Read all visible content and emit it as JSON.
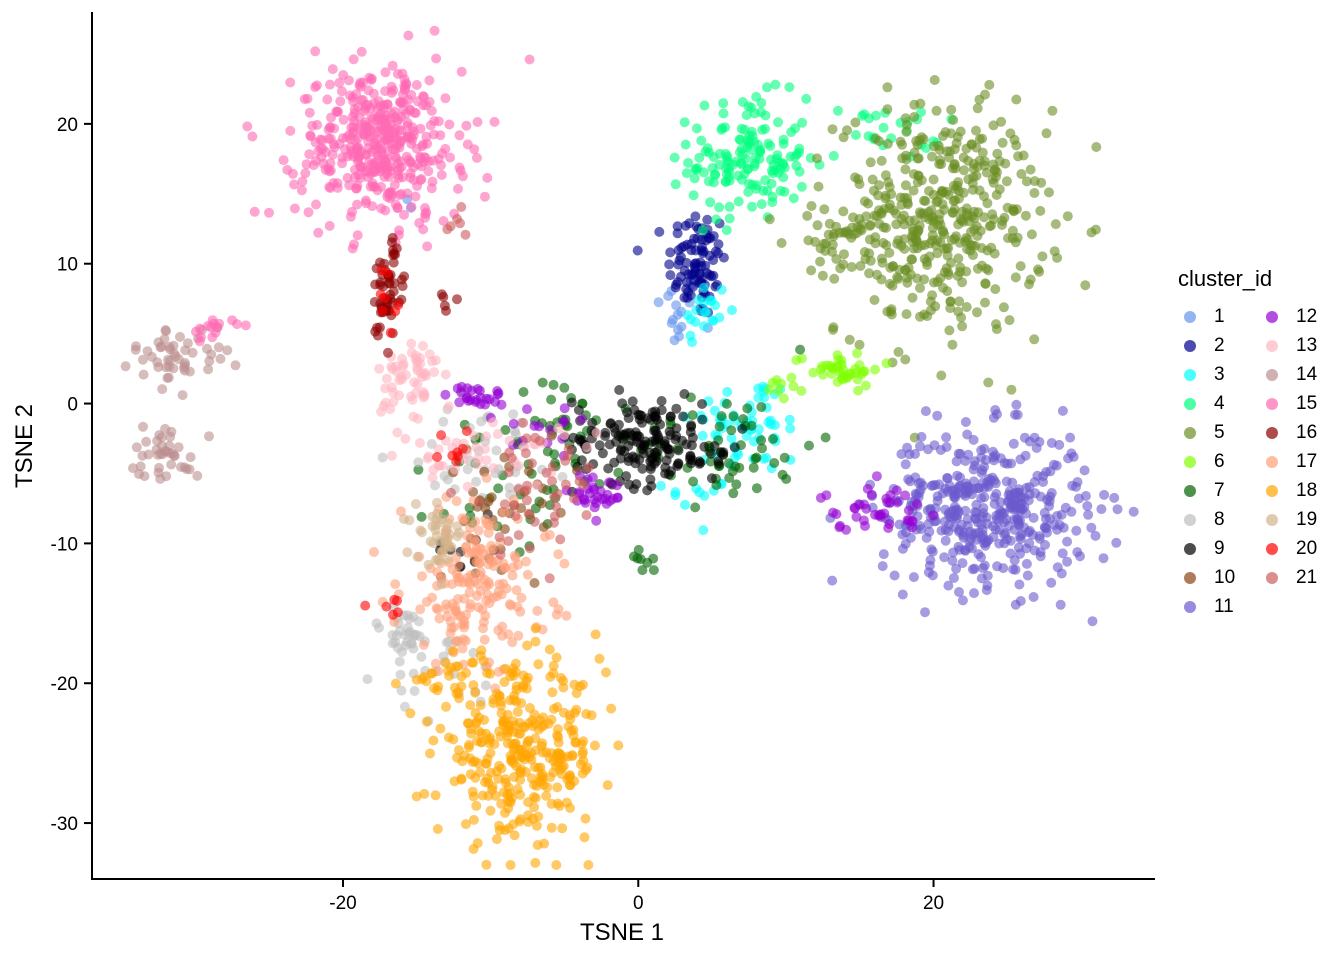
{
  "chart_data": {
    "type": "scatter",
    "xlabel": "TSNE 1",
    "ylabel": "TSNE 2",
    "xlim": [
      -37,
      35
    ],
    "ylim": [
      -34,
      28
    ],
    "xticks": [
      -20,
      0,
      20
    ],
    "yticks": [
      -30,
      -20,
      -10,
      0,
      10,
      20
    ],
    "grid": false,
    "point_opacity": 0.6,
    "legend": {
      "title": "cluster_id",
      "placement": "right",
      "columns": 2
    },
    "series": [
      {
        "name": "1",
        "color": "#6495ED",
        "clusters": [
          {
            "cx": 2.5,
            "cy": 6.5,
            "sx": 0.8,
            "sy": 1.5,
            "n": 16
          },
          {
            "cx": -15.5,
            "cy": 14.5,
            "sx": 0.3,
            "sy": 0.3,
            "n": 2
          }
        ]
      },
      {
        "name": "2",
        "color": "#00008B",
        "clusters": [
          {
            "cx": 4.0,
            "cy": 10.0,
            "sx": 1.0,
            "sy": 2.0,
            "n": 90
          }
        ]
      },
      {
        "name": "3",
        "color": "#00FFFF",
        "clusters": [
          {
            "cx": 4.5,
            "cy": 6.5,
            "sx": 0.8,
            "sy": 1.2,
            "n": 20
          },
          {
            "cx": 7.5,
            "cy": -1.5,
            "sx": 2.0,
            "sy": 1.8,
            "n": 60
          },
          {
            "cx": 4.0,
            "cy": -6.5,
            "sx": 1.0,
            "sy": 0.6,
            "n": 10
          }
        ]
      },
      {
        "name": "4",
        "color": "#00FF7F",
        "clusters": [
          {
            "cx": 7.5,
            "cy": 17.5,
            "sx": 2.0,
            "sy": 2.2,
            "n": 150
          },
          {
            "cx": 16.5,
            "cy": 19.5,
            "sx": 2.0,
            "sy": 1.0,
            "n": 25
          }
        ]
      },
      {
        "name": "5",
        "color": "#6B8E23",
        "clusters": [
          {
            "cx": 20.5,
            "cy": 13.0,
            "sx": 3.5,
            "sy": 4.0,
            "n": 430
          },
          {
            "cx": 14.0,
            "cy": 12.0,
            "sx": 2.0,
            "sy": 1.2,
            "n": 35
          }
        ]
      },
      {
        "name": "6",
        "color": "#7FFF00",
        "clusters": [
          {
            "cx": 13.5,
            "cy": 2.5,
            "sx": 1.5,
            "sy": 0.6,
            "n": 40
          },
          {
            "cx": 10.0,
            "cy": 1.0,
            "sx": 0.6,
            "sy": 0.6,
            "n": 8
          }
        ]
      },
      {
        "name": "7",
        "color": "#006400",
        "clusters": [
          {
            "cx": 6.0,
            "cy": -3.0,
            "sx": 3.0,
            "sy": 2.0,
            "n": 60
          },
          {
            "cx": -5.5,
            "cy": -2.0,
            "sx": 2.0,
            "sy": 2.0,
            "n": 40
          },
          {
            "cx": -9.0,
            "cy": -7.0,
            "sx": 2.5,
            "sy": 2.0,
            "n": 25
          },
          {
            "cx": 0.5,
            "cy": -11.5,
            "sx": 0.4,
            "sy": 0.5,
            "n": 8
          }
        ]
      },
      {
        "name": "8",
        "color": "#BEBEBE",
        "clusters": [
          {
            "cx": -16.0,
            "cy": -16.5,
            "sx": 1.2,
            "sy": 1.0,
            "n": 30
          },
          {
            "cx": -10.0,
            "cy": -3.5,
            "sx": 3.0,
            "sy": 2.0,
            "n": 40
          },
          {
            "cx": -13.0,
            "cy": -19.5,
            "sx": 2.0,
            "sy": 1.5,
            "n": 25
          }
        ]
      },
      {
        "name": "9",
        "color": "#000000",
        "clusters": [
          {
            "cx": 0.0,
            "cy": -2.5,
            "sx": 2.2,
            "sy": 1.6,
            "n": 140
          },
          {
            "cx": 4.0,
            "cy": -3.5,
            "sx": 1.5,
            "sy": 0.8,
            "n": 30
          },
          {
            "cx": -11.5,
            "cy": -10.5,
            "sx": 1.2,
            "sy": 1.0,
            "n": 10
          }
        ]
      },
      {
        "name": "10",
        "color": "#8B4513",
        "clusters": [
          {
            "cx": -9.0,
            "cy": -7.5,
            "sx": 2.5,
            "sy": 2.0,
            "n": 35
          }
        ]
      },
      {
        "name": "11",
        "color": "#6A5ACD",
        "clusters": [
          {
            "cx": 23.5,
            "cy": -7.5,
            "sx": 3.5,
            "sy": 2.8,
            "n": 420
          }
        ]
      },
      {
        "name": "12",
        "color": "#9400D3",
        "clusters": [
          {
            "cx": -11.0,
            "cy": 0.5,
            "sx": 1.0,
            "sy": 0.4,
            "n": 25
          },
          {
            "cx": 16.0,
            "cy": -7.5,
            "sx": 1.8,
            "sy": 0.8,
            "n": 40
          },
          {
            "cx": -3.0,
            "cy": -6.5,
            "sx": 1.0,
            "sy": 0.8,
            "n": 30
          },
          {
            "cx": -6.0,
            "cy": -2.0,
            "sx": 2.0,
            "sy": 1.5,
            "n": 15
          }
        ]
      },
      {
        "name": "13",
        "color": "#FFB6C1",
        "clusters": [
          {
            "cx": -15.5,
            "cy": 1.5,
            "sx": 1.0,
            "sy": 2.0,
            "n": 60
          },
          {
            "cx": -10.0,
            "cy": -3.5,
            "sx": 2.5,
            "sy": 1.2,
            "n": 40
          }
        ]
      },
      {
        "name": "14",
        "color": "#BC8F8F",
        "clusters": [
          {
            "cx": -31.0,
            "cy": 3.5,
            "sx": 1.6,
            "sy": 1.0,
            "n": 50
          },
          {
            "cx": -32.0,
            "cy": -3.5,
            "sx": 1.2,
            "sy": 1.0,
            "n": 40
          }
        ]
      },
      {
        "name": "15",
        "color": "#FF69B4",
        "clusters": [
          {
            "cx": -17.5,
            "cy": 18.5,
            "sx": 2.8,
            "sy": 2.8,
            "n": 420
          },
          {
            "cx": -29.0,
            "cy": 5.5,
            "sx": 0.8,
            "sy": 0.5,
            "n": 15
          }
        ]
      },
      {
        "name": "16",
        "color": "#8B0000",
        "clusters": [
          {
            "cx": -17.0,
            "cy": 8.0,
            "sx": 0.6,
            "sy": 1.8,
            "n": 55
          },
          {
            "cx": -13.0,
            "cy": 7.5,
            "sx": 0.8,
            "sy": 0.6,
            "n": 5
          }
        ]
      },
      {
        "name": "17",
        "color": "#FFA07A",
        "clusters": [
          {
            "cx": -11.0,
            "cy": -13.0,
            "sx": 2.5,
            "sy": 3.0,
            "n": 180
          }
        ]
      },
      {
        "name": "18",
        "color": "#FFA500",
        "clusters": [
          {
            "cx": -8.0,
            "cy": -25.0,
            "sx": 2.8,
            "sy": 3.0,
            "n": 330
          },
          {
            "cx": -12.0,
            "cy": -19.5,
            "sx": 1.5,
            "sy": 1.0,
            "n": 25
          }
        ]
      },
      {
        "name": "19",
        "color": "#D2B48C",
        "clusters": [
          {
            "cx": -13.5,
            "cy": -9.5,
            "sx": 0.8,
            "sy": 1.0,
            "n": 40
          }
        ]
      },
      {
        "name": "20",
        "color": "#FF0000",
        "clusters": [
          {
            "cx": -17.0,
            "cy": 7.5,
            "sx": 0.6,
            "sy": 1.2,
            "n": 8
          },
          {
            "cx": -12.5,
            "cy": -3.5,
            "sx": 1.0,
            "sy": 0.6,
            "n": 8
          },
          {
            "cx": -17.0,
            "cy": -14.5,
            "sx": 0.6,
            "sy": 0.4,
            "n": 6
          }
        ]
      },
      {
        "name": "21",
        "color": "#CD5C5C",
        "clusters": [
          {
            "cx": -7.0,
            "cy": -6.0,
            "sx": 2.5,
            "sy": 2.5,
            "n": 45
          },
          {
            "cx": -12.5,
            "cy": 13.0,
            "sx": 0.8,
            "sy": 1.0,
            "n": 6
          }
        ]
      }
    ]
  }
}
